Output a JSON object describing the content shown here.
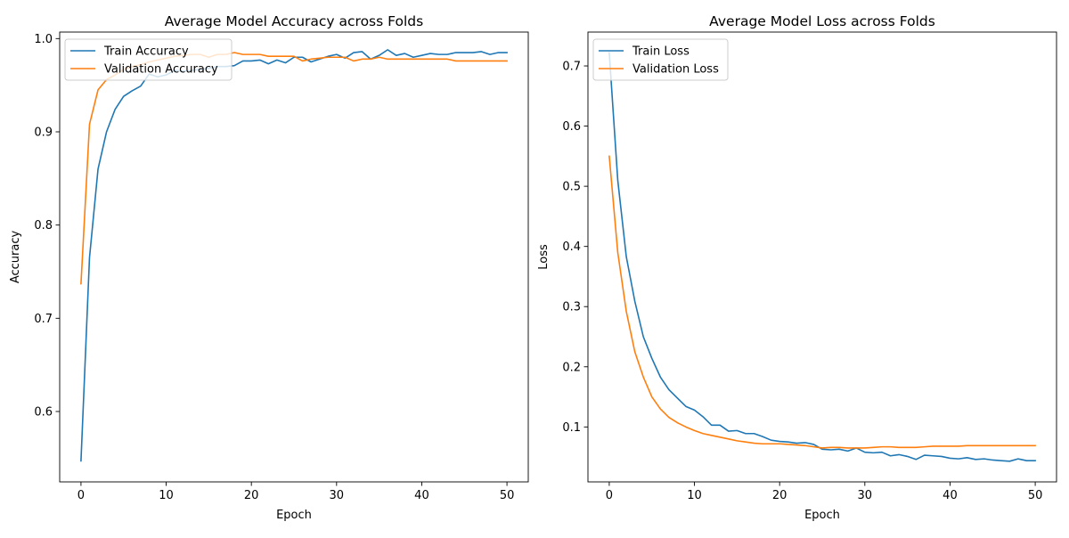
{
  "chart_data": [
    {
      "type": "line",
      "title": "Average Model Accuracy across Folds",
      "xlabel": "Epoch",
      "ylabel": "Accuracy",
      "xlim": [
        -2.5,
        52.5
      ],
      "ylim": [
        0.5245,
        1.007
      ],
      "xticks": [
        0,
        10,
        20,
        30,
        40,
        50
      ],
      "yticks": [
        0.6,
        0.7,
        0.8,
        0.9,
        1.0
      ],
      "ytick_labels": [
        "0.6",
        "0.7",
        "0.8",
        "0.9",
        "1.0"
      ],
      "grid": false,
      "legend_position": "top-left",
      "series": [
        {
          "name": "Train Accuracy",
          "color": "#1f77b4",
          "x": [
            0,
            1,
            2,
            3,
            4,
            5,
            6,
            7,
            8,
            9,
            10,
            11,
            12,
            13,
            14,
            15,
            16,
            17,
            18,
            19,
            20,
            21,
            22,
            23,
            24,
            25,
            26,
            27,
            28,
            29,
            30,
            31,
            32,
            33,
            34,
            35,
            36,
            37,
            38,
            39,
            40,
            41,
            42,
            43,
            44,
            45,
            46,
            47,
            48,
            49,
            50
          ],
          "values": [
            0.547,
            0.765,
            0.86,
            0.9,
            0.924,
            0.938,
            0.944,
            0.949,
            0.962,
            0.959,
            0.961,
            0.966,
            0.965,
            0.966,
            0.967,
            0.968,
            0.97,
            0.97,
            0.971,
            0.976,
            0.976,
            0.977,
            0.973,
            0.977,
            0.974,
            0.98,
            0.98,
            0.975,
            0.978,
            0.981,
            0.983,
            0.979,
            0.985,
            0.986,
            0.978,
            0.982,
            0.988,
            0.982,
            0.984,
            0.98,
            0.982,
            0.984,
            0.983,
            0.983,
            0.985,
            0.985,
            0.985,
            0.986,
            0.983,
            0.985,
            0.985
          ]
        },
        {
          "name": "Validation Accuracy",
          "color": "#ff7f0e",
          "x": [
            0,
            1,
            2,
            3,
            4,
            5,
            6,
            7,
            8,
            9,
            10,
            11,
            12,
            13,
            14,
            15,
            16,
            17,
            18,
            19,
            20,
            21,
            22,
            23,
            24,
            25,
            26,
            27,
            28,
            29,
            30,
            31,
            32,
            33,
            34,
            35,
            36,
            37,
            38,
            39,
            40,
            41,
            42,
            43,
            44,
            45,
            46,
            47,
            48,
            49,
            50
          ],
          "values": [
            0.737,
            0.908,
            0.945,
            0.956,
            0.961,
            0.967,
            0.97,
            0.972,
            0.975,
            0.977,
            0.979,
            0.981,
            0.982,
            0.983,
            0.983,
            0.98,
            0.983,
            0.983,
            0.985,
            0.983,
            0.983,
            0.983,
            0.981,
            0.981,
            0.981,
            0.981,
            0.976,
            0.978,
            0.979,
            0.98,
            0.98,
            0.98,
            0.976,
            0.978,
            0.978,
            0.98,
            0.978,
            0.978,
            0.978,
            0.978,
            0.978,
            0.978,
            0.978,
            0.978,
            0.976,
            0.976,
            0.976,
            0.976,
            0.976,
            0.976,
            0.976
          ]
        }
      ]
    },
    {
      "type": "line",
      "title": "Average Model Loss across Folds",
      "xlabel": "Epoch",
      "ylabel": "Loss",
      "xlim": [
        -2.5,
        52.5
      ],
      "ylim": [
        0.0087,
        0.7563
      ],
      "xticks": [
        0,
        10,
        20,
        30,
        40,
        50
      ],
      "yticks": [
        0.1,
        0.2,
        0.3,
        0.4,
        0.5,
        0.6,
        0.7
      ],
      "ytick_labels": [
        "0.1",
        "0.2",
        "0.3",
        "0.4",
        "0.5",
        "0.6",
        "0.7"
      ],
      "grid": false,
      "legend_position": "top-left",
      "series": [
        {
          "name": "Train Loss",
          "color": "#1f77b4",
          "x": [
            0,
            1,
            2,
            3,
            4,
            5,
            6,
            7,
            8,
            9,
            10,
            11,
            12,
            13,
            14,
            15,
            16,
            17,
            18,
            19,
            20,
            21,
            22,
            23,
            24,
            25,
            26,
            27,
            28,
            29,
            30,
            31,
            32,
            33,
            34,
            35,
            36,
            37,
            38,
            39,
            40,
            41,
            42,
            43,
            44,
            45,
            46,
            47,
            48,
            49,
            50
          ],
          "values": [
            0.722,
            0.51,
            0.383,
            0.309,
            0.25,
            0.214,
            0.183,
            0.162,
            0.148,
            0.134,
            0.128,
            0.117,
            0.103,
            0.103,
            0.093,
            0.094,
            0.089,
            0.089,
            0.084,
            0.078,
            0.076,
            0.075,
            0.073,
            0.074,
            0.071,
            0.063,
            0.062,
            0.063,
            0.06,
            0.065,
            0.058,
            0.057,
            0.058,
            0.052,
            0.054,
            0.051,
            0.046,
            0.053,
            0.052,
            0.051,
            0.048,
            0.047,
            0.049,
            0.046,
            0.047,
            0.045,
            0.044,
            0.043,
            0.047,
            0.044,
            0.044
          ]
        },
        {
          "name": "Validation Loss",
          "color": "#ff7f0e",
          "x": [
            0,
            1,
            2,
            3,
            4,
            5,
            6,
            7,
            8,
            9,
            10,
            11,
            12,
            13,
            14,
            15,
            16,
            17,
            18,
            19,
            20,
            21,
            22,
            23,
            24,
            25,
            26,
            27,
            28,
            29,
            30,
            31,
            32,
            33,
            34,
            35,
            36,
            37,
            38,
            39,
            40,
            41,
            42,
            43,
            44,
            45,
            46,
            47,
            48,
            49,
            50
          ],
          "values": [
            0.55,
            0.39,
            0.292,
            0.225,
            0.183,
            0.15,
            0.13,
            0.116,
            0.107,
            0.1,
            0.094,
            0.089,
            0.086,
            0.083,
            0.08,
            0.077,
            0.075,
            0.073,
            0.072,
            0.072,
            0.072,
            0.071,
            0.07,
            0.069,
            0.067,
            0.065,
            0.066,
            0.066,
            0.065,
            0.065,
            0.065,
            0.066,
            0.067,
            0.067,
            0.066,
            0.066,
            0.066,
            0.067,
            0.068,
            0.068,
            0.068,
            0.068,
            0.069,
            0.069,
            0.069,
            0.069,
            0.069,
            0.069,
            0.069,
            0.069,
            0.069
          ]
        }
      ]
    }
  ]
}
